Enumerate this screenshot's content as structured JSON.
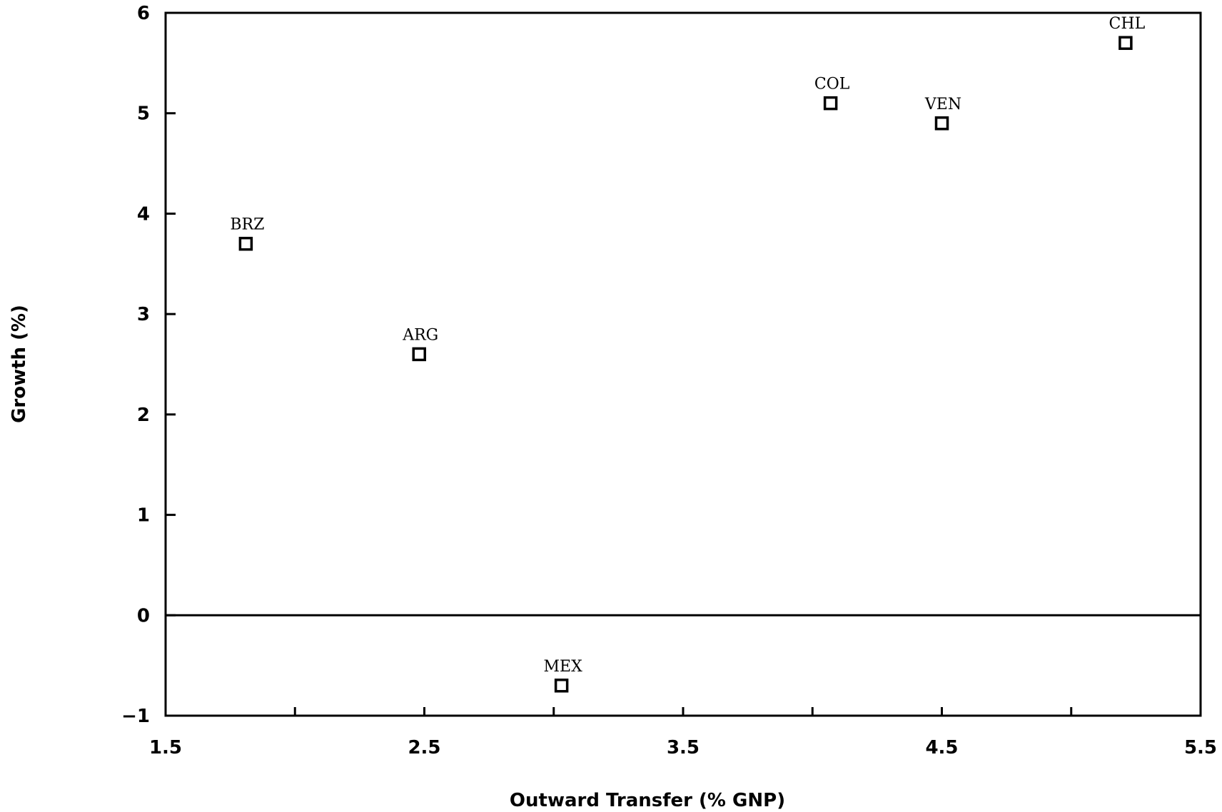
{
  "chart_data": {
    "type": "scatter",
    "xlabel": "Outward Transfer (% GNP)",
    "ylabel": "Growth (%)",
    "xlim": [
      1.5,
      5.5
    ],
    "ylim": [
      -1,
      6
    ],
    "x_ticks": [
      1.5,
      2.0,
      2.5,
      3.0,
      3.5,
      4.0,
      4.5,
      5.0,
      5.5
    ],
    "x_tick_labels": [
      "1.5",
      "2.5",
      "3.5",
      "4.5",
      "5.5"
    ],
    "x_tick_label_values": [
      1.5,
      2.5,
      3.5,
      4.5,
      5.5
    ],
    "y_ticks": [
      -1,
      0,
      1,
      2,
      3,
      4,
      5,
      6
    ],
    "y_tick_labels": [
      "−1",
      "0",
      "1",
      "2",
      "3",
      "4",
      "5",
      "6"
    ],
    "zero_line": true,
    "grid": false,
    "legend": "none",
    "points": [
      {
        "label": "BRZ",
        "x": 1.81,
        "y": 3.7
      },
      {
        "label": "ARG",
        "x": 2.48,
        "y": 2.6
      },
      {
        "label": "MEX",
        "x": 3.03,
        "y": -0.7
      },
      {
        "label": "COL",
        "x": 4.07,
        "y": 5.1
      },
      {
        "label": "VEN",
        "x": 4.5,
        "y": 4.9
      },
      {
        "label": "CHL",
        "x": 5.21,
        "y": 5.7
      }
    ]
  }
}
